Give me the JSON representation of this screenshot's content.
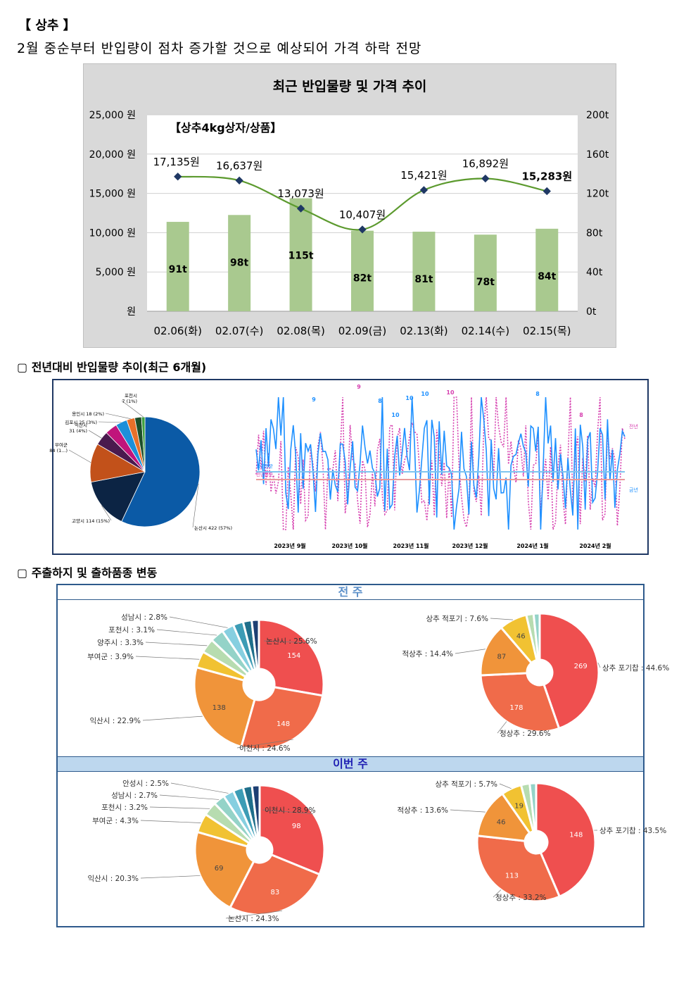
{
  "header": {
    "title": "【 상추 】",
    "subtitle": "2월 중순부터 반입량이 점차 증가할 것으로 예상되어 가격 하락 전망"
  },
  "chart1": {
    "title": "최근 반입물량 및 가격 추이",
    "inset_label": "【상추4kg상자/상품】"
  },
  "section2": {
    "title": "▢ 전년대비 반입물량 추이(최근 6개월)"
  },
  "section3": {
    "title": "▢ 주출하지 및 출하품종 변동",
    "bar_prev": "전 주",
    "bar_this": "이번 주"
  },
  "colors": {
    "bar": "#a9c98f",
    "line": "#5c9a2e",
    "marker": "#1f3864",
    "blue": "#1e90ff",
    "magenta": "#d63faf"
  },
  "chart_data": [
    {
      "type": "bar",
      "title": "최근 반입물량 및 가격 추이",
      "categories": [
        "02.06(화)",
        "02.07(수)",
        "02.08(목)",
        "02.09(금)",
        "02.13(화)",
        "02.14(수)",
        "02.15(목)"
      ],
      "series": [
        {
          "values": [
            91,
            98,
            115,
            82,
            81,
            78,
            84
          ],
          "labels": [
            "91t",
            "98t",
            "115t",
            "82t",
            "81t",
            "78t",
            "84t"
          ]
        },
        {
          "type": "line",
          "values": [
            17135,
            16637,
            13073,
            10407,
            15421,
            16892,
            15283
          ],
          "labels": [
            "17,135원",
            "16,637원",
            "13,073원",
            "10,407원",
            "15,421원",
            "16,892원",
            "15,283원"
          ]
        }
      ],
      "y_left_ticks": [
        "25,000 원",
        "20,000 원",
        "15,000 원",
        "10,000 원",
        "5,000 원",
        "원"
      ],
      "y_right_ticks": [
        "200t",
        "160t",
        "120t",
        "80t",
        "40t",
        "0t"
      ],
      "ylim_left": [
        0,
        25000
      ],
      "ylim_right": [
        0,
        200
      ],
      "grid": true
    },
    {
      "type": "pie",
      "slices": [
        {
          "label": "논산시 422 (57%)",
          "value": 57,
          "color": "#0b5aa6"
        },
        {
          "label": "고양시 114 (15%)",
          "value": 15,
          "color": "#0c2444"
        },
        {
          "label": "부여군 84 (1...)",
          "value": 11.4,
          "color": "#c2511a"
        },
        {
          "label": "익산시 31 (4%)",
          "value": 4.2,
          "color": "#4a1a4e"
        },
        {
          "label": "",
          "value": 3.6,
          "color": "#c0147b"
        },
        {
          "label": "김포시 25 (3%)",
          "value": 3.4,
          "color": "#1d8fd9"
        },
        {
          "label": "용인시 18 (2%)",
          "value": 2.4,
          "color": "#e8702a"
        },
        {
          "label": "",
          "value": 2.0,
          "color": "#1d4f2a"
        },
        {
          "label": "포천시 7 (1%)",
          "value": 1.0,
          "color": "#40a040"
        }
      ]
    },
    {
      "type": "line",
      "x_labels": [
        "2023년 9월",
        "2023년 10월",
        "2023년 11월",
        "2023년 12월",
        "2024년 1월",
        "2024년 2월"
      ],
      "series": [
        {
          "name": "금년"
        },
        {
          "name": "전년"
        }
      ],
      "peak_labels": [
        "9",
        "9",
        "8",
        "10",
        "10",
        "10",
        "10",
        "8",
        "8"
      ],
      "annotations": [
        "금년평균",
        "전년평균"
      ]
    },
    {
      "type": "pie",
      "group": "전 주",
      "chart": "출하지",
      "slices": [
        {
          "label": "논산시 : 25.6%",
          "value": 154,
          "color": "#ef4f4f"
        },
        {
          "label": "이천시 : 24.6%",
          "value": 148,
          "color": "#f06b4a"
        },
        {
          "label": "익산시 : 22.9%",
          "value": 138,
          "color": "#f0943a"
        },
        {
          "label": "부여군 : 3.9%",
          "value": 23,
          "color": "#f1c232"
        },
        {
          "label": "양주시 : 3.3%",
          "value": 20,
          "color": "#b7dcb0"
        },
        {
          "label": "포천시 : 3.1%",
          "value": 19,
          "color": "#94d3c8"
        },
        {
          "label": "성남시 : 2.8%",
          "value": 17,
          "color": "#86cfe0"
        },
        {
          "label": "",
          "value": 14,
          "color": "#3c9cb5"
        },
        {
          "label": "",
          "value": 12,
          "color": "#1f6f8b"
        },
        {
          "label": "",
          "value": 10,
          "color": "#1d3f73"
        }
      ]
    },
    {
      "type": "pie",
      "group": "전 주",
      "chart": "품종",
      "slices": [
        {
          "label": "상추 포기찹 : 44.6%",
          "value": 269,
          "color": "#ef4f4f"
        },
        {
          "label": "청상추 : 29.6%",
          "value": 178,
          "color": "#f06b4a"
        },
        {
          "label": "적상추 : 14.4%",
          "value": 87,
          "color": "#f0943a"
        },
        {
          "label": "상추 적포기 : 7.6%",
          "value": 46,
          "color": "#f1c232"
        },
        {
          "label": "",
          "value": 12,
          "color": "#b7dcb0"
        },
        {
          "label": "",
          "value": 10,
          "color": "#94d3c8"
        }
      ]
    },
    {
      "type": "pie",
      "group": "이번 주",
      "chart": "출하지",
      "slices": [
        {
          "label": "이천시 : 28.9%",
          "value": 98,
          "color": "#ef4f4f"
        },
        {
          "label": "논산시 : 24.3%",
          "value": 83,
          "color": "#f06b4a"
        },
        {
          "label": "익산시 : 20.3%",
          "value": 69,
          "color": "#f0943a"
        },
        {
          "label": "부여군 : 4.3%",
          "value": 15,
          "color": "#f1c232"
        },
        {
          "label": "포천시 : 3.2%",
          "value": 11,
          "color": "#b7dcb0"
        },
        {
          "label": "성남시 : 2.7%",
          "value": 9,
          "color": "#94d3c8"
        },
        {
          "label": "안성시 : 2.5%",
          "value": 8.5,
          "color": "#86cfe0"
        },
        {
          "label": "",
          "value": 8,
          "color": "#3c9cb5"
        },
        {
          "label": "",
          "value": 7,
          "color": "#1f6f8b"
        },
        {
          "label": "",
          "value": 6,
          "color": "#1d3f73"
        }
      ]
    },
    {
      "type": "pie",
      "group": "이번 주",
      "chart": "품종",
      "slices": [
        {
          "label": "상추 포기찹 : 43.5%",
          "value": 148,
          "color": "#ef4f4f"
        },
        {
          "label": "청상추 : 33.2%",
          "value": 113,
          "color": "#f06b4a"
        },
        {
          "label": "적상추 : 13.6%",
          "value": 46,
          "color": "#f0943a"
        },
        {
          "label": "상추 적포기 : 5.7%",
          "value": 19,
          "color": "#f1c232"
        },
        {
          "label": "",
          "value": 8,
          "color": "#b7dcb0"
        },
        {
          "label": "",
          "value": 6,
          "color": "#94d3c8"
        }
      ]
    }
  ]
}
